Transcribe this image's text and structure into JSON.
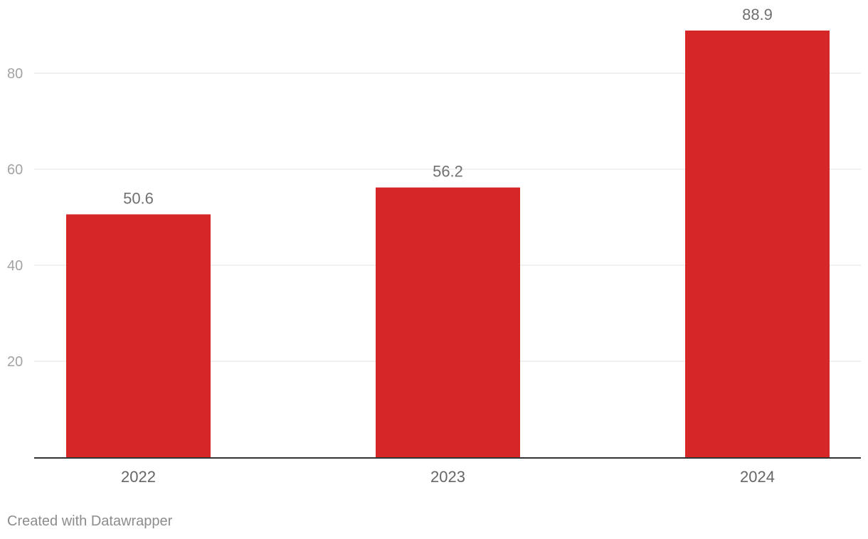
{
  "chart_data": {
    "type": "bar",
    "categories": [
      "2022",
      "2023",
      "2024"
    ],
    "values": [
      50.6,
      56.2,
      88.9
    ],
    "value_labels": [
      "50.6",
      "56.2",
      "88.9"
    ],
    "title": "",
    "xlabel": "",
    "ylabel": "",
    "ylim": [
      0,
      90
    ],
    "y_ticks": [
      20,
      40,
      60,
      80
    ],
    "grid": true,
    "legend": "none",
    "bar_color": "#d62728"
  },
  "footer": {
    "credit": "Created with Datawrapper"
  }
}
